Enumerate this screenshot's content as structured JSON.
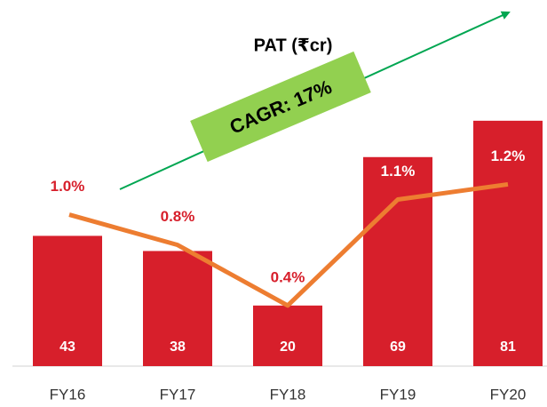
{
  "chart_data": {
    "type": "bar",
    "title": "PAT (₹cr)",
    "annotation": "CAGR: 17%",
    "categories": [
      "FY16",
      "FY17",
      "FY18",
      "FY19",
      "FY20"
    ],
    "series": [
      {
        "type": "bar",
        "color": "#d71f2b",
        "values": [
          43,
          38,
          20,
          69,
          81
        ]
      },
      {
        "type": "line",
        "axis": "y2",
        "color": "#ed7d31",
        "label_color": "#d71f2b",
        "values": [
          1.0,
          0.8,
          0.4,
          1.1,
          1.2
        ],
        "value_labels": [
          "1.0%",
          "0.8%",
          "0.4%",
          "1.1%",
          "1.2%"
        ]
      }
    ],
    "ylim": [
      0,
      110
    ],
    "y2lim": [
      0,
      2.2
    ]
  }
}
